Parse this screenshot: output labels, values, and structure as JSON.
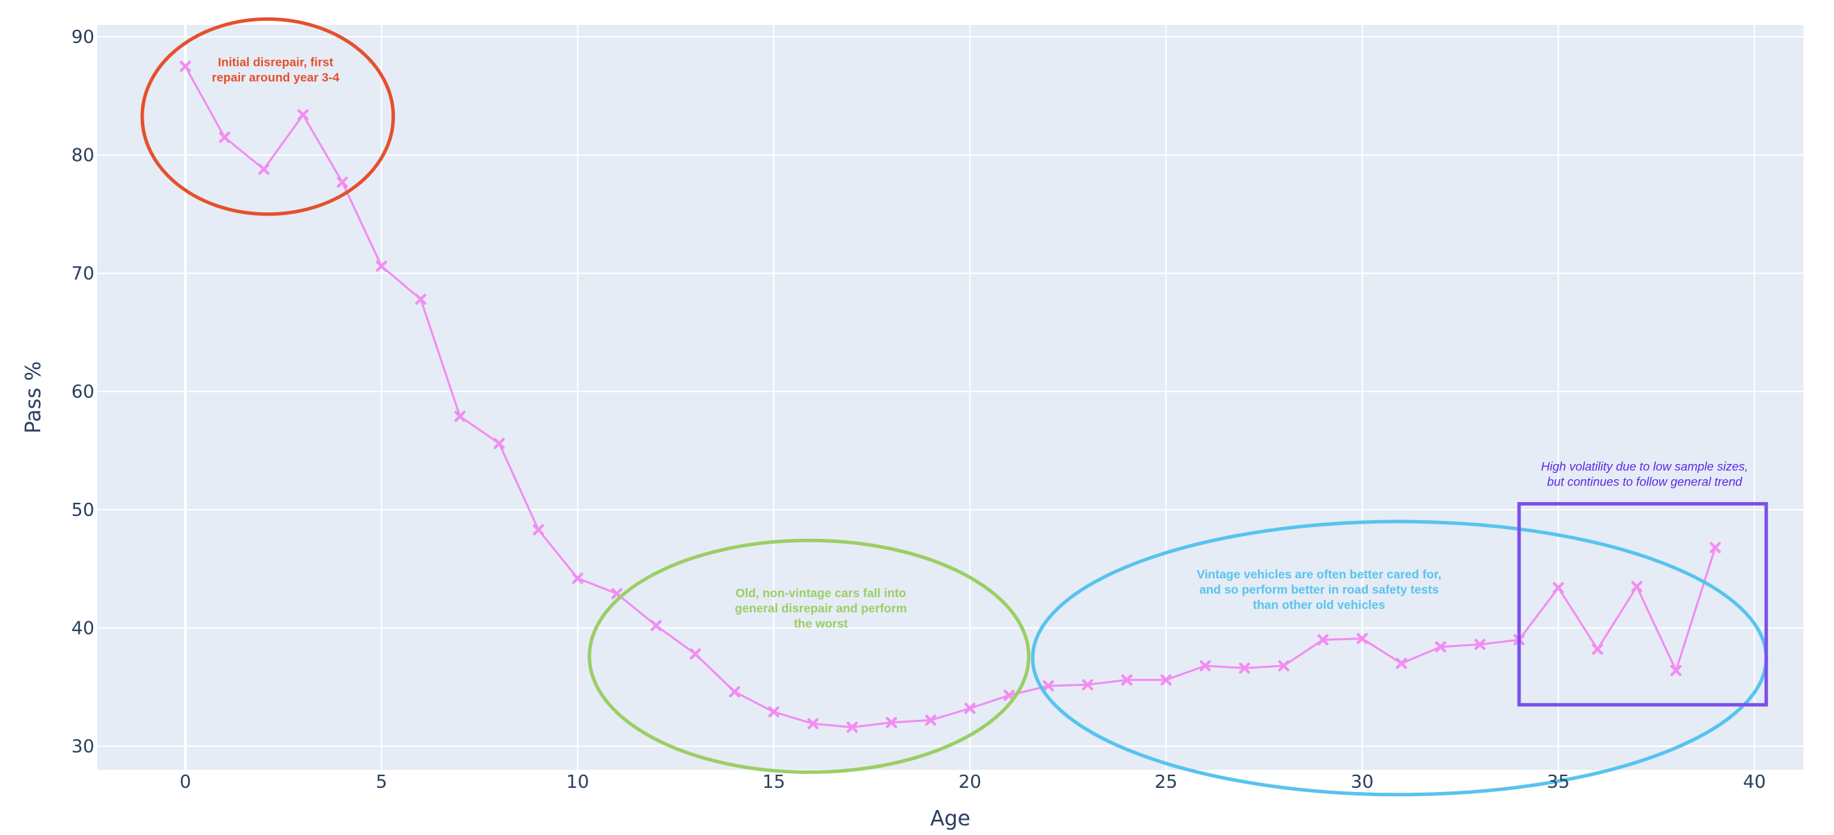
{
  "chart_data": {
    "type": "line",
    "xlabel": "Age",
    "ylabel": "Pass %",
    "xlim": [
      -2.25,
      41.25
    ],
    "ylim": [
      28,
      91
    ],
    "xticks": [
      0,
      5,
      10,
      15,
      20,
      25,
      30,
      35,
      40
    ],
    "yticks": [
      30,
      40,
      50,
      60,
      70,
      80,
      90
    ],
    "grid": true,
    "legend": "none",
    "series": [
      {
        "color": "#f28cf2",
        "marker": "x",
        "x": [
          0,
          1,
          2,
          3,
          4,
          5,
          6,
          7,
          8,
          9,
          10,
          11,
          12,
          13,
          14,
          15,
          16,
          17,
          18,
          19,
          20,
          21,
          22,
          23,
          24,
          25,
          26,
          27,
          28,
          29,
          30,
          31,
          32,
          33,
          34,
          35,
          36,
          37,
          38,
          39
        ],
        "y": [
          87.5,
          81.5,
          78.8,
          83.4,
          77.7,
          70.6,
          67.8,
          57.9,
          55.6,
          48.3,
          44.2,
          42.9,
          40.2,
          37.8,
          34.6,
          32.9,
          31.9,
          31.6,
          32.0,
          32.2,
          33.2,
          34.3,
          35.1,
          35.2,
          35.6,
          35.6,
          36.8,
          36.6,
          36.8,
          39.0,
          39.1,
          37.0,
          38.4,
          38.6,
          39.0,
          43.4,
          38.2,
          43.5,
          36.4,
          46.8
        ]
      }
    ],
    "annotations": [
      {
        "lines": [
          "Initial disrepair, first",
          "repair around year 3-4"
        ],
        "text_x": 2.3,
        "text_y": 87.5,
        "color": "#e5502d",
        "italic": false,
        "shape": "ellipse",
        "shape_x": [
          -1.1,
          5.3
        ],
        "shape_y": [
          75.0,
          91.5
        ]
      },
      {
        "lines": [
          "Old, non-vintage cars fall into",
          "general disrepair and perform",
          "the worst"
        ],
        "text_x": 16.2,
        "text_y": 42.6,
        "color": "#9bce64",
        "italic": false,
        "shape": "ellipse",
        "shape_x": [
          10.3,
          21.5
        ],
        "shape_y": [
          27.8,
          47.4
        ]
      },
      {
        "lines": [
          "Vintage vehicles are often better cared for,",
          "and so perform better in road safety tests",
          "than other old vehicles"
        ],
        "text_x": 28.9,
        "text_y": 44.2,
        "color": "#57c3ef",
        "italic": false,
        "shape": "ellipse",
        "shape_x": [
          21.6,
          40.3
        ],
        "shape_y": [
          25.9,
          49.0
        ]
      },
      {
        "lines": [
          "High volatility due to low sample sizes,",
          "but continues to follow general trend"
        ],
        "text_x": 37.2,
        "text_y": 53.3,
        "color": "#5a28e6",
        "italic": true,
        "shape": "rect",
        "shape_x": [
          34.0,
          40.3
        ],
        "shape_y": [
          33.5,
          50.5
        ],
        "shape_color": "#7c50e8"
      }
    ]
  }
}
